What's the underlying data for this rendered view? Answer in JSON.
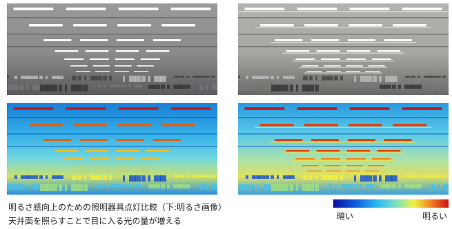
{
  "caption": {
    "line1": "明るさ感向上のための照明器具点灯比較（下:明るさ画像）",
    "line2": "天井面を照らすことで目に入る光の量が増える"
  },
  "legend": {
    "dark_label": "暗い",
    "bright_label": "明るい"
  }
}
